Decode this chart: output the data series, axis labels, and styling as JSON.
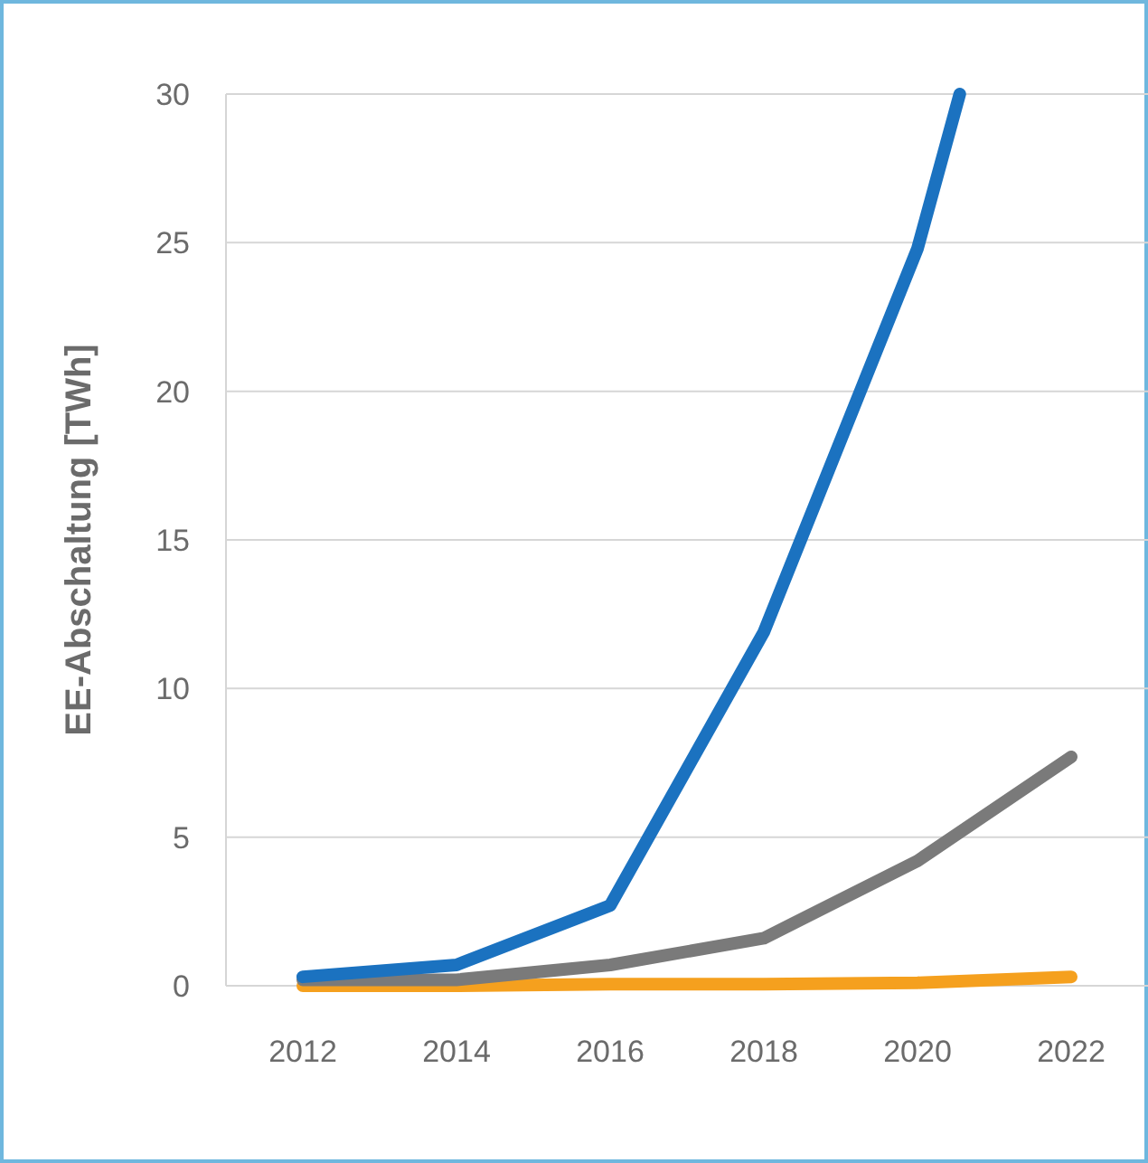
{
  "chart_data": {
    "type": "line",
    "ylabel": "EE-Abschaltung [TWh]",
    "xlim": [
      2011,
      2023
    ],
    "xticks": [
      2012,
      2014,
      2016,
      2018,
      2020,
      2022
    ],
    "ylim": [
      0,
      30
    ],
    "yticks": [
      0,
      5,
      10,
      15,
      20,
      25,
      30
    ],
    "grid": "y",
    "marker": "none",
    "line_style": "solid",
    "series": [
      {
        "color": "#f5a01e",
        "x": [
          2012,
          2014,
          2016,
          2018,
          2020,
          2022
        ],
        "values": [
          0,
          0,
          0.05,
          0.05,
          0.1,
          0.3
        ]
      },
      {
        "color": "#7a7a7a",
        "x": [
          2012,
          2014,
          2016,
          2018,
          2020,
          2022
        ],
        "values": [
          0.2,
          0.2,
          0.7,
          1.6,
          4.2,
          7.7
        ]
      },
      {
        "color": "#1b72c0",
        "x": [
          2012,
          2014,
          2016,
          2018,
          2020,
          2020.55
        ],
        "values": [
          0.3,
          0.7,
          2.7,
          11.9,
          24.8,
          30
        ]
      }
    ]
  }
}
